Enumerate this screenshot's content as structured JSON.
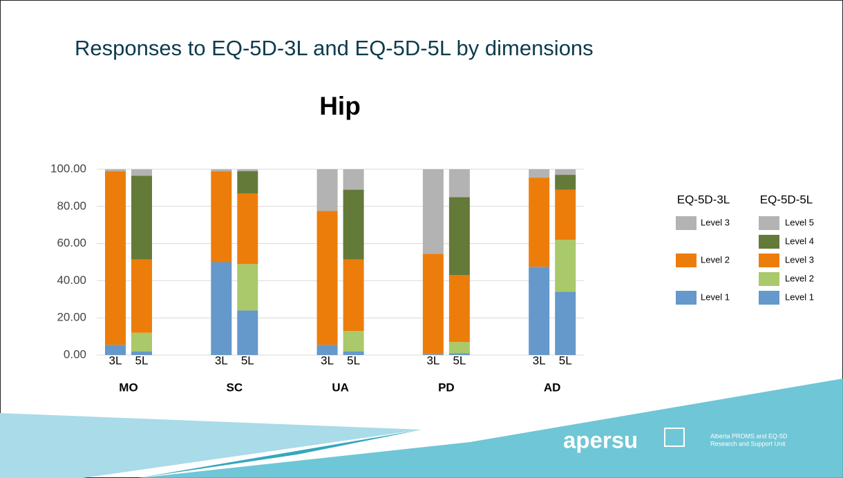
{
  "header": {
    "title": "Responses to EQ-5D-3L and EQ-5D-5L by dimensions"
  },
  "chart_data": {
    "type": "bar",
    "stacked": true,
    "title": "Hip",
    "groups": [
      "MO",
      "SC",
      "UA",
      "PD",
      "AD"
    ],
    "ylim": [
      0,
      100
    ],
    "yticks": [
      {
        "value": 0,
        "label": "0.00"
      },
      {
        "value": 20,
        "label": "20.00"
      },
      {
        "value": 40,
        "label": "40.00"
      },
      {
        "value": 60,
        "label": "60.00"
      },
      {
        "value": 80,
        "label": "80.00"
      },
      {
        "value": 100,
        "label": "100.00"
      }
    ],
    "grid": true,
    "subsets": [
      {
        "name": "EQ-5D-3L",
        "label": "3L",
        "series": [
          {
            "name": "Level 1",
            "color": "#6598cb",
            "values": [
              5.5,
              50,
              5.5,
              0.5,
              47.5
            ]
          },
          {
            "name": "Level 2",
            "color": "#ed7d0a",
            "values": [
              93.5,
              49,
              72,
              54,
              48
            ]
          },
          {
            "name": "Level 3",
            "color": "#b3b3b3",
            "values": [
              1,
              1,
              22.5,
              45.5,
              4.5
            ]
          }
        ]
      },
      {
        "name": "EQ-5D-5L",
        "label": "5L",
        "series": [
          {
            "name": "Level 1",
            "color": "#6598cb",
            "values": [
              2,
              24,
              2,
              1,
              34
            ]
          },
          {
            "name": "Level 2",
            "color": "#a9c96a",
            "values": [
              10,
              25,
              11,
              6,
              28
            ]
          },
          {
            "name": "Level 3",
            "color": "#ed7d0a",
            "values": [
              39.5,
              38,
              38.5,
              36,
              27
            ]
          },
          {
            "name": "Level 4",
            "color": "#637a38",
            "values": [
              45,
              12,
              37.5,
              42,
              8
            ]
          },
          {
            "name": "Level 5",
            "color": "#b3b3b3",
            "values": [
              3.5,
              1,
              11,
              15,
              3
            ]
          }
        ]
      }
    ]
  },
  "footer": {
    "logo": "apersu",
    "unit_line1": "Alberta PROMS and EQ-5D",
    "unit_line2": "Research and Support Unit"
  }
}
